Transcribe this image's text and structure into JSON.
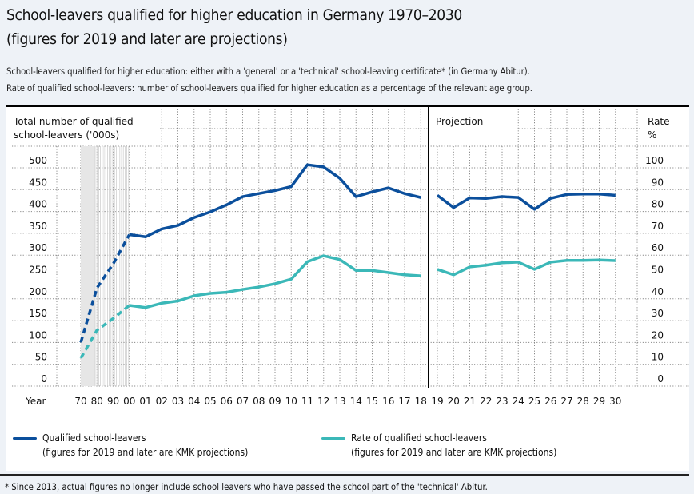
{
  "header": {
    "title_line1": "School-leavers qualified for higher education in Germany 1970–2030",
    "title_line2": "(figures for 2019 and later are projections)",
    "subtitle_line1": "School-leavers qualified for higher education: either with a 'general' or a 'technical' school-leaving certificate* (in Germany Abitur).",
    "subtitle_line2": "Rate of qualified school-leavers: number of school-leavers qualified for higher education as a percentage of the relevant age group."
  },
  "colors": {
    "qualified": "#0b4f9c",
    "rate": "#3bb8b8",
    "background": "#eef2f7"
  },
  "chart_data": {
    "type": "line",
    "title": "School-leavers qualified for higher education in Germany 1970–2030",
    "left_axis_label_line1": "Total number of qualified",
    "left_axis_label_line2": "school-leavers ('000s)",
    "right_axis_label_line1": "Rate",
    "right_axis_label_line2": "%",
    "projection_label": "Projection",
    "xlabel": "Year",
    "x_ticks": [
      "70",
      "80",
      "90",
      "00",
      "01",
      "02",
      "03",
      "04",
      "05",
      "06",
      "07",
      "08",
      "09",
      "10",
      "11",
      "12",
      "13",
      "14",
      "15",
      "16",
      "17",
      "18",
      "19",
      "20",
      "21",
      "22",
      "23",
      "24",
      "25",
      "26",
      "27",
      "28",
      "29",
      "30"
    ],
    "y_left_ticks": [
      "0",
      "50",
      "100",
      "150",
      "200",
      "250",
      "300",
      "350",
      "400",
      "450",
      "500"
    ],
    "y_right_ticks": [
      "0",
      "10",
      "20",
      "30",
      "40",
      "50",
      "60",
      "70",
      "80",
      "90",
      "100"
    ],
    "ylim_left": [
      0,
      500
    ],
    "ylim_right": [
      0,
      100
    ],
    "grid": true,
    "projection_starts": "19",
    "series": [
      {
        "name": "Qualified school-leavers",
        "legend_note": "(figures for 2019 and later are KMK projections)",
        "axis": "left",
        "values": [
          100,
          225,
          280,
          347,
          342,
          360,
          368,
          386,
          399,
          415,
          434,
          441,
          448,
          457,
          507,
          502,
          476,
          434,
          445,
          454,
          441,
          432,
          437,
          409,
          431,
          430,
          434,
          432,
          405,
          430,
          439,
          440,
          440,
          437
        ]
      },
      {
        "name": "Rate of qualified school-leavers",
        "legend_note": "(figures for 2019 and later are KMK projections)",
        "axis": "right",
        "values": [
          12.8,
          25.6,
          31,
          37,
          36,
          38,
          39,
          41.4,
          42.5,
          43,
          44.3,
          45.4,
          46.9,
          49,
          57,
          59.7,
          58,
          53,
          53,
          52,
          51,
          50.5,
          53.5,
          51,
          54.6,
          55.4,
          56.5,
          56.8,
          53.5,
          56.8,
          57.6,
          57.6,
          57.8,
          57.5
        ]
      }
    ]
  },
  "footnote": "* Since 2013, actual figures no longer include school leavers who have passed the school part of the 'technical' Abitur."
}
